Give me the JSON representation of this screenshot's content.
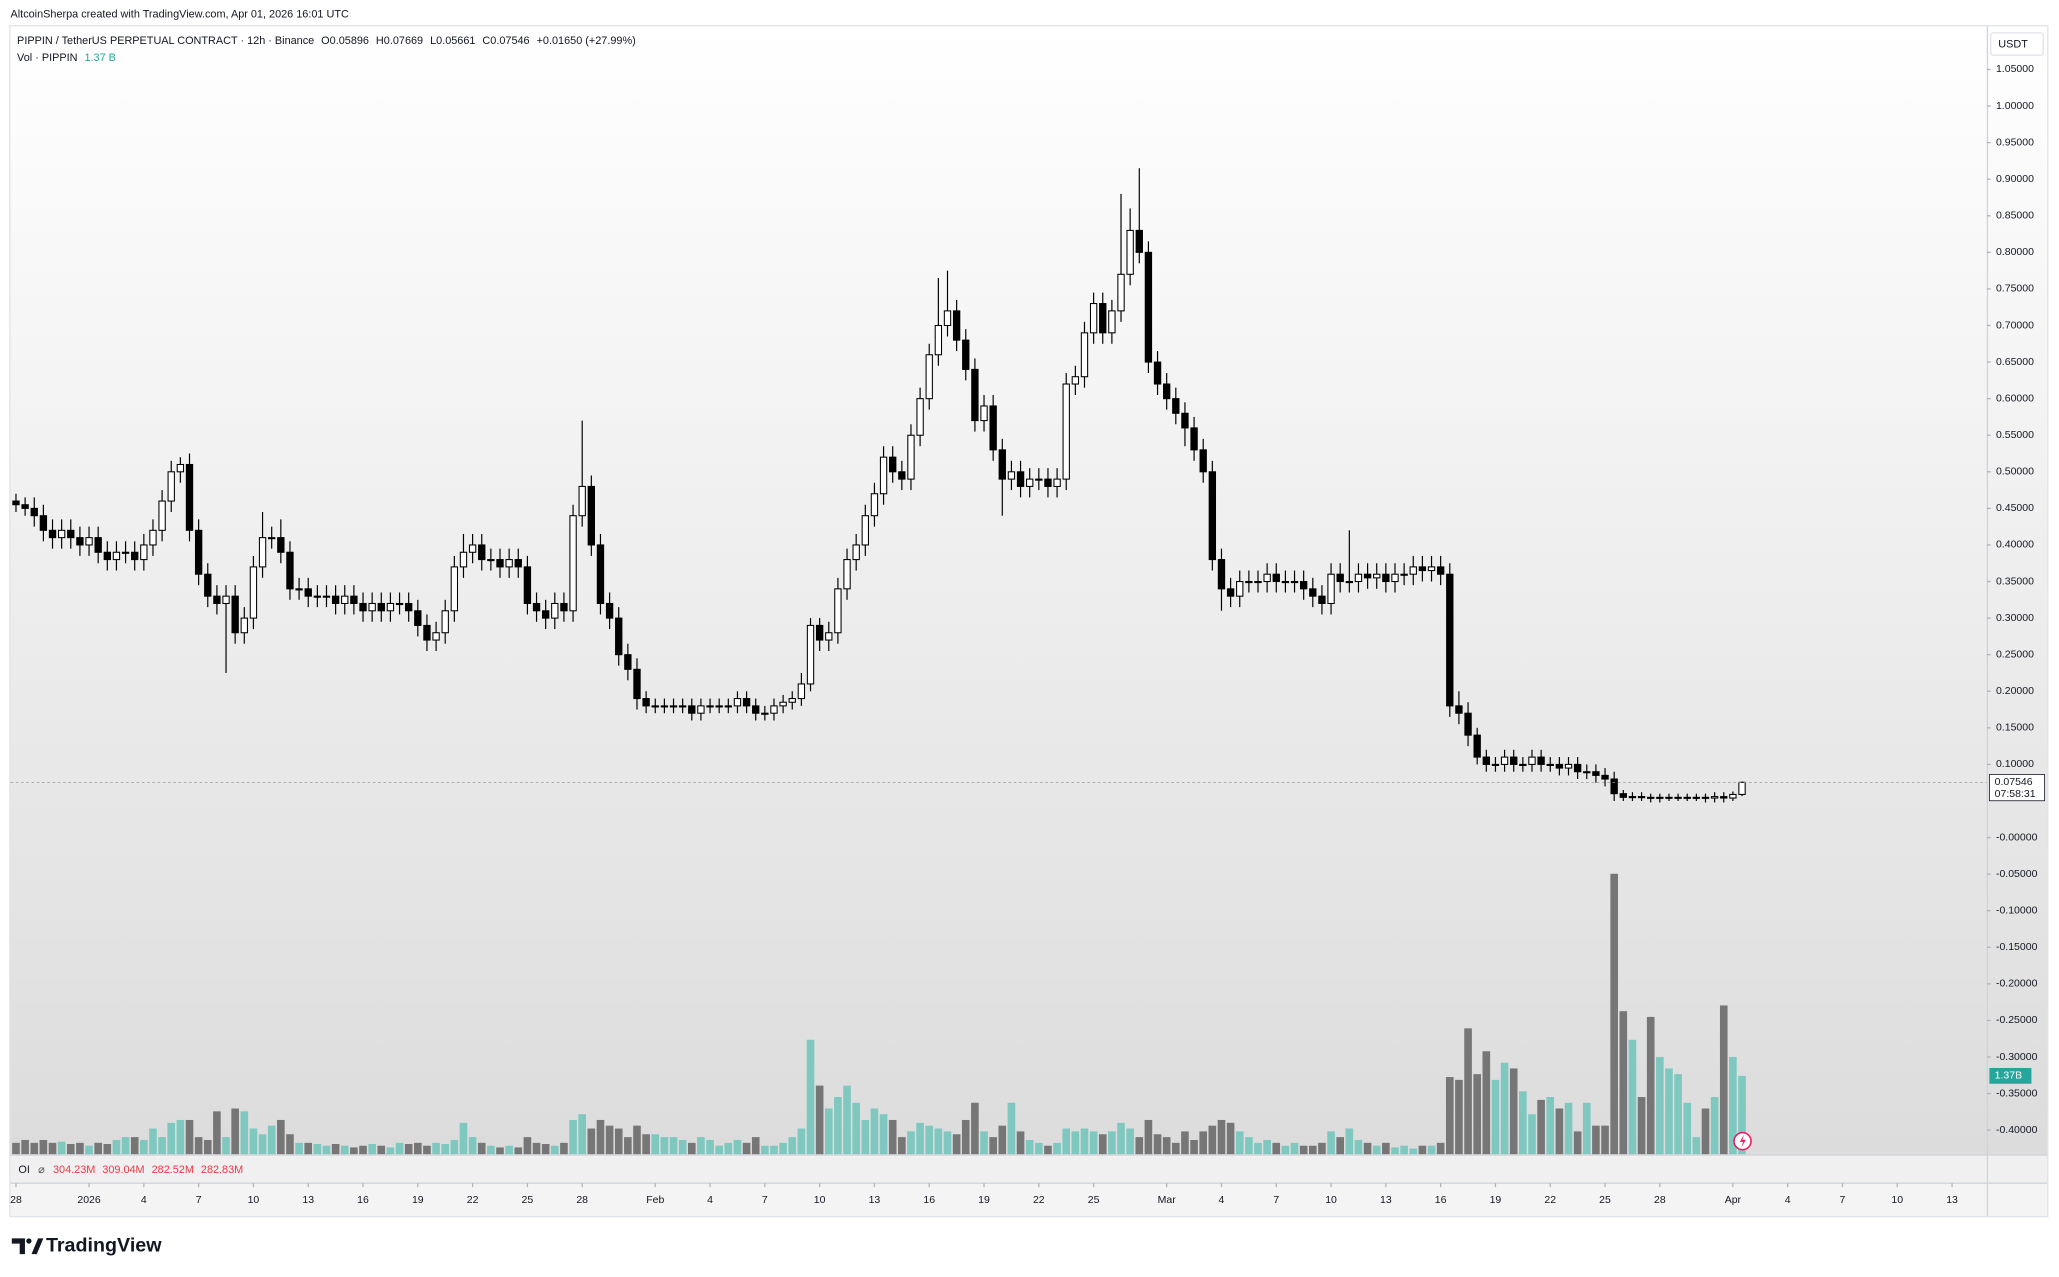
{
  "header": {
    "attribution": "AltcoinSherpa created with TradingView.com, Apr 01, 2026 16:01 UTC"
  },
  "chart_data": {
    "type": "candlestick",
    "legend": {
      "symbol": "PIPPIN / TetherUS PERPETUAL CONTRACT · 12h · Binance",
      "ohlc": [
        {
          "key": "O",
          "value": "0.05896"
        },
        {
          "key": "H",
          "value": "0.07669"
        },
        {
          "key": "L",
          "value": "0.05661"
        },
        {
          "key": "C",
          "value": "0.07546"
        }
      ],
      "change": "+0.01650 (+27.99%)",
      "volume_name": "Vol · PIPPIN",
      "volume_value": "1.37 B"
    },
    "y_axis_unit": "USDT",
    "x": [
      0,
      0.5,
      1,
      1.5,
      2,
      2.5,
      3,
      3.5,
      4,
      4.5,
      5,
      5.5,
      6,
      6.5,
      7,
      7.5,
      8,
      8.5,
      9,
      9.5,
      10,
      10.5,
      11,
      11.5,
      12,
      12.5,
      13,
      13.5,
      14,
      14.5,
      15,
      15.5,
      16,
      16.5,
      17,
      17.5,
      18,
      18.5,
      19,
      19.5,
      20,
      20.5,
      21,
      21.5,
      22,
      22.5,
      23,
      23.5,
      24,
      24.5,
      25,
      25.5,
      26,
      26.5,
      27,
      27.5,
      28,
      28.5,
      29,
      29.5,
      30,
      30.5,
      31,
      31.5,
      32,
      32.5,
      33,
      33.5,
      34,
      34.5,
      35,
      35.5,
      36,
      36.5,
      37,
      37.5,
      38,
      38.5,
      39,
      39.5,
      40,
      40.5,
      41,
      41.5,
      42,
      42.5,
      43,
      43.5,
      44,
      44.5,
      45,
      45.5,
      46,
      46.5,
      47,
      47.5,
      48,
      48.5,
      49,
      49.5,
      50,
      50.5,
      51,
      51.5,
      52,
      52.5,
      53,
      53.5,
      54,
      54.5,
      55,
      55.5,
      56,
      56.5,
      57,
      57.5,
      58,
      58.5,
      59,
      59.5,
      60,
      60.5,
      61,
      61.5,
      62,
      62.5,
      63,
      63.5,
      64,
      64.5,
      65,
      65.5,
      66,
      66.5,
      67,
      67.5,
      68,
      68.5,
      69,
      69.5,
      70,
      70.5,
      71,
      71.5,
      72,
      72.5,
      73,
      73.5,
      74,
      74.5,
      75,
      75.5,
      76,
      76.5,
      77,
      77.5,
      78,
      78.5,
      79,
      79.5,
      80,
      80.5,
      81,
      81.5,
      82,
      82.5,
      83,
      83.5,
      84,
      84.5,
      85,
      85.5,
      86,
      86.5,
      87,
      87.5,
      88,
      88.5,
      89,
      89.5,
      90,
      90.5,
      91,
      91.5,
      92,
      92.5,
      93,
      93.5,
      94,
      94.5
    ],
    "open": [
      0.46,
      0.455,
      0.45,
      0.44,
      0.42,
      0.41,
      0.42,
      0.41,
      0.4,
      0.41,
      0.39,
      0.38,
      0.39,
      0.39,
      0.38,
      0.4,
      0.42,
      0.46,
      0.5,
      0.51,
      0.42,
      0.36,
      0.33,
      0.32,
      0.33,
      0.28,
      0.3,
      0.37,
      0.41,
      0.41,
      0.39,
      0.34,
      0.34,
      0.33,
      0.33,
      0.33,
      0.32,
      0.33,
      0.32,
      0.31,
      0.32,
      0.31,
      0.32,
      0.32,
      0.31,
      0.29,
      0.27,
      0.28,
      0.31,
      0.37,
      0.39,
      0.4,
      0.38,
      0.38,
      0.37,
      0.38,
      0.37,
      0.32,
      0.31,
      0.3,
      0.32,
      0.31,
      0.44,
      0.48,
      0.4,
      0.32,
      0.3,
      0.25,
      0.23,
      0.19,
      0.18,
      0.18,
      0.18,
      0.18,
      0.18,
      0.17,
      0.18,
      0.18,
      0.18,
      0.18,
      0.19,
      0.18,
      0.17,
      0.17,
      0.18,
      0.185,
      0.19,
      0.21,
      0.29,
      0.27,
      0.28,
      0.34,
      0.38,
      0.4,
      0.44,
      0.47,
      0.52,
      0.5,
      0.49,
      0.55,
      0.6,
      0.66,
      0.7,
      0.72,
      0.68,
      0.64,
      0.57,
      0.59,
      0.53,
      0.49,
      0.5,
      0.48,
      0.49,
      0.49,
      0.48,
      0.49,
      0.62,
      0.63,
      0.69,
      0.73,
      0.69,
      0.72,
      0.77,
      0.83,
      0.8,
      0.65,
      0.62,
      0.6,
      0.58,
      0.56,
      0.53,
      0.5,
      0.38,
      0.34,
      0.33,
      0.35,
      0.35,
      0.35,
      0.36,
      0.35,
      0.35,
      0.35,
      0.34,
      0.33,
      0.32,
      0.36,
      0.35,
      0.35,
      0.36,
      0.355,
      0.36,
      0.35,
      0.36,
      0.36,
      0.37,
      0.365,
      0.37,
      0.36,
      0.18,
      0.17,
      0.14,
      0.11,
      0.1,
      0.1,
      0.11,
      0.1,
      0.1,
      0.11,
      0.1,
      0.1,
      0.095,
      0.1,
      0.09,
      0.09,
      0.085,
      0.08,
      0.06,
      0.055,
      0.056,
      0.055,
      0.054,
      0.055,
      0.055,
      0.055,
      0.055,
      0.055,
      0.054,
      0.056,
      0.054,
      0.05896
    ],
    "high": [
      0.47,
      0.465,
      0.465,
      0.455,
      0.435,
      0.435,
      0.435,
      0.425,
      0.425,
      0.425,
      0.405,
      0.405,
      0.405,
      0.405,
      0.415,
      0.435,
      0.475,
      0.515,
      0.52,
      0.525,
      0.435,
      0.375,
      0.345,
      0.345,
      0.345,
      0.315,
      0.385,
      0.445,
      0.425,
      0.435,
      0.405,
      0.355,
      0.355,
      0.345,
      0.345,
      0.345,
      0.345,
      0.345,
      0.335,
      0.335,
      0.335,
      0.335,
      0.335,
      0.335,
      0.325,
      0.305,
      0.295,
      0.325,
      0.385,
      0.415,
      0.415,
      0.415,
      0.395,
      0.395,
      0.395,
      0.395,
      0.385,
      0.335,
      0.325,
      0.335,
      0.335,
      0.455,
      0.57,
      0.495,
      0.415,
      0.335,
      0.315,
      0.265,
      0.245,
      0.2,
      0.19,
      0.19,
      0.19,
      0.19,
      0.19,
      0.19,
      0.19,
      0.19,
      0.19,
      0.2,
      0.2,
      0.19,
      0.18,
      0.19,
      0.195,
      0.2,
      0.225,
      0.3,
      0.3,
      0.295,
      0.355,
      0.395,
      0.415,
      0.455,
      0.485,
      0.535,
      0.535,
      0.515,
      0.565,
      0.615,
      0.675,
      0.765,
      0.775,
      0.735,
      0.695,
      0.655,
      0.605,
      0.605,
      0.545,
      0.515,
      0.515,
      0.505,
      0.505,
      0.505,
      0.505,
      0.635,
      0.645,
      0.705,
      0.745,
      0.745,
      0.735,
      0.88,
      0.86,
      0.915,
      0.815,
      0.665,
      0.635,
      0.615,
      0.595,
      0.575,
      0.545,
      0.515,
      0.395,
      0.355,
      0.365,
      0.365,
      0.365,
      0.375,
      0.375,
      0.365,
      0.365,
      0.365,
      0.355,
      0.345,
      0.375,
      0.375,
      0.42,
      0.375,
      0.375,
      0.375,
      0.375,
      0.375,
      0.375,
      0.385,
      0.385,
      0.385,
      0.385,
      0.375,
      0.2,
      0.185,
      0.15,
      0.12,
      0.11,
      0.12,
      0.12,
      0.11,
      0.12,
      0.12,
      0.11,
      0.11,
      0.11,
      0.11,
      0.1,
      0.1,
      0.095,
      0.09,
      0.065,
      0.062,
      0.062,
      0.06,
      0.06,
      0.06,
      0.06,
      0.06,
      0.06,
      0.06,
      0.062,
      0.062,
      0.063,
      0.07669
    ],
    "low": [
      0.445,
      0.44,
      0.425,
      0.405,
      0.395,
      0.395,
      0.395,
      0.385,
      0.385,
      0.375,
      0.365,
      0.365,
      0.375,
      0.365,
      0.365,
      0.385,
      0.405,
      0.445,
      0.485,
      0.405,
      0.345,
      0.315,
      0.305,
      0.225,
      0.265,
      0.265,
      0.285,
      0.355,
      0.395,
      0.375,
      0.325,
      0.325,
      0.315,
      0.315,
      0.315,
      0.305,
      0.305,
      0.305,
      0.295,
      0.295,
      0.295,
      0.295,
      0.305,
      0.295,
      0.275,
      0.255,
      0.255,
      0.265,
      0.295,
      0.355,
      0.375,
      0.365,
      0.365,
      0.355,
      0.355,
      0.355,
      0.305,
      0.295,
      0.285,
      0.285,
      0.295,
      0.295,
      0.425,
      0.385,
      0.305,
      0.285,
      0.235,
      0.215,
      0.175,
      0.17,
      0.17,
      0.17,
      0.17,
      0.17,
      0.16,
      0.16,
      0.17,
      0.17,
      0.17,
      0.17,
      0.17,
      0.16,
      0.16,
      0.16,
      0.17,
      0.175,
      0.18,
      0.2,
      0.255,
      0.255,
      0.265,
      0.325,
      0.365,
      0.385,
      0.425,
      0.455,
      0.485,
      0.475,
      0.475,
      0.535,
      0.585,
      0.645,
      0.685,
      0.665,
      0.625,
      0.555,
      0.555,
      0.515,
      0.44,
      0.475,
      0.465,
      0.465,
      0.475,
      0.465,
      0.465,
      0.475,
      0.605,
      0.615,
      0.675,
      0.675,
      0.675,
      0.705,
      0.755,
      0.785,
      0.635,
      0.605,
      0.585,
      0.565,
      0.535,
      0.515,
      0.485,
      0.365,
      0.31,
      0.315,
      0.315,
      0.335,
      0.335,
      0.335,
      0.335,
      0.335,
      0.335,
      0.325,
      0.315,
      0.305,
      0.305,
      0.335,
      0.335,
      0.335,
      0.34,
      0.34,
      0.335,
      0.335,
      0.345,
      0.345,
      0.35,
      0.35,
      0.345,
      0.165,
      0.155,
      0.125,
      0.1,
      0.09,
      0.09,
      0.09,
      0.09,
      0.09,
      0.09,
      0.09,
      0.09,
      0.085,
      0.085,
      0.08,
      0.08,
      0.075,
      0.07,
      0.05,
      0.05,
      0.05,
      0.05,
      0.048,
      0.048,
      0.05,
      0.05,
      0.05,
      0.05,
      0.048,
      0.048,
      0.048,
      0.05,
      0.05661
    ],
    "close": [
      0.455,
      0.45,
      0.44,
      0.42,
      0.41,
      0.42,
      0.41,
      0.4,
      0.41,
      0.39,
      0.38,
      0.39,
      0.39,
      0.38,
      0.4,
      0.42,
      0.46,
      0.5,
      0.51,
      0.42,
      0.36,
      0.33,
      0.32,
      0.33,
      0.28,
      0.3,
      0.37,
      0.41,
      0.41,
      0.39,
      0.34,
      0.34,
      0.33,
      0.33,
      0.33,
      0.32,
      0.33,
      0.32,
      0.31,
      0.32,
      0.31,
      0.32,
      0.32,
      0.31,
      0.29,
      0.27,
      0.28,
      0.31,
      0.37,
      0.39,
      0.4,
      0.38,
      0.38,
      0.37,
      0.38,
      0.37,
      0.32,
      0.31,
      0.3,
      0.32,
      0.31,
      0.44,
      0.48,
      0.4,
      0.32,
      0.3,
      0.25,
      0.23,
      0.19,
      0.18,
      0.18,
      0.18,
      0.18,
      0.18,
      0.17,
      0.18,
      0.18,
      0.18,
      0.18,
      0.19,
      0.18,
      0.17,
      0.17,
      0.18,
      0.185,
      0.19,
      0.21,
      0.29,
      0.27,
      0.28,
      0.34,
      0.38,
      0.4,
      0.44,
      0.47,
      0.52,
      0.5,
      0.49,
      0.55,
      0.6,
      0.66,
      0.7,
      0.72,
      0.68,
      0.64,
      0.57,
      0.59,
      0.53,
      0.49,
      0.5,
      0.48,
      0.49,
      0.49,
      0.48,
      0.49,
      0.62,
      0.63,
      0.69,
      0.73,
      0.69,
      0.72,
      0.77,
      0.83,
      0.8,
      0.65,
      0.62,
      0.6,
      0.58,
      0.56,
      0.53,
      0.5,
      0.38,
      0.34,
      0.33,
      0.35,
      0.35,
      0.35,
      0.36,
      0.35,
      0.35,
      0.35,
      0.34,
      0.33,
      0.32,
      0.36,
      0.35,
      0.35,
      0.36,
      0.355,
      0.36,
      0.35,
      0.36,
      0.36,
      0.37,
      0.365,
      0.37,
      0.36,
      0.18,
      0.17,
      0.14,
      0.11,
      0.1,
      0.1,
      0.11,
      0.1,
      0.1,
      0.11,
      0.1,
      0.1,
      0.095,
      0.1,
      0.09,
      0.09,
      0.085,
      0.08,
      0.06,
      0.055,
      0.056,
      0.055,
      0.054,
      0.055,
      0.055,
      0.055,
      0.055,
      0.055,
      0.054,
      0.056,
      0.054,
      0.05896,
      0.07546
    ],
    "volume": [
      0.2,
      0.25,
      0.2,
      0.25,
      0.2,
      0.22,
      0.18,
      0.2,
      0.15,
      0.2,
      0.18,
      0.25,
      0.3,
      0.3,
      0.25,
      0.45,
      0.3,
      0.55,
      0.6,
      0.6,
      0.3,
      0.25,
      0.75,
      0.3,
      0.8,
      0.75,
      0.45,
      0.35,
      0.5,
      0.6,
      0.35,
      0.2,
      0.2,
      0.18,
      0.15,
      0.18,
      0.15,
      0.12,
      0.15,
      0.18,
      0.15,
      0.12,
      0.2,
      0.18,
      0.2,
      0.15,
      0.2,
      0.18,
      0.25,
      0.55,
      0.3,
      0.2,
      0.15,
      0.12,
      0.15,
      0.12,
      0.3,
      0.2,
      0.18,
      0.15,
      0.2,
      0.6,
      0.7,
      0.45,
      0.6,
      0.5,
      0.45,
      0.3,
      0.5,
      0.35,
      0.35,
      0.3,
      0.3,
      0.25,
      0.2,
      0.3,
      0.25,
      0.15,
      0.2,
      0.25,
      0.2,
      0.3,
      0.15,
      0.15,
      0.2,
      0.3,
      0.45,
      2.0,
      1.2,
      0.8,
      1.0,
      1.2,
      0.9,
      0.6,
      0.8,
      0.7,
      0.6,
      0.3,
      0.4,
      0.55,
      0.5,
      0.45,
      0.4,
      0.35,
      0.6,
      0.9,
      0.4,
      0.3,
      0.5,
      0.9,
      0.4,
      0.25,
      0.2,
      0.15,
      0.2,
      0.45,
      0.4,
      0.45,
      0.4,
      0.35,
      0.4,
      0.55,
      0.45,
      0.3,
      0.6,
      0.35,
      0.3,
      0.2,
      0.4,
      0.25,
      0.4,
      0.5,
      0.6,
      0.55,
      0.4,
      0.3,
      0.2,
      0.25,
      0.2,
      0.15,
      0.2,
      0.15,
      0.15,
      0.2,
      0.4,
      0.3,
      0.45,
      0.25,
      0.2,
      0.15,
      0.2,
      0.12,
      0.15,
      0.1,
      0.15,
      0.15,
      0.2,
      1.35,
      1.3,
      2.2,
      1.4,
      1.8,
      1.3,
      1.6,
      1.5,
      1.1,
      0.7,
      0.95,
      1.0,
      0.8,
      0.9,
      0.4,
      0.9,
      0.5,
      0.5,
      4.9,
      2.5,
      2.0,
      1.0,
      2.4,
      1.7,
      1.5,
      1.4,
      0.9,
      0.3,
      0.8,
      1.0,
      2.6,
      1.7,
      1.37
    ],
    "up_color": "#ffffff",
    "down_color": "#000000",
    "wick_color": "#000000",
    "volume_up_color": "#7fc8c0",
    "volume_down_color": "#767676",
    "xlim": [
      -0.3,
      107.9
    ],
    "xticks": [
      {
        "value": 0,
        "label": "28"
      },
      {
        "value": 4,
        "label": "2026"
      },
      {
        "value": 7,
        "label": "4"
      },
      {
        "value": 10,
        "label": "7"
      },
      {
        "value": 13,
        "label": "10"
      },
      {
        "value": 16,
        "label": "13"
      },
      {
        "value": 19,
        "label": "16"
      },
      {
        "value": 22,
        "label": "19"
      },
      {
        "value": 25,
        "label": "22"
      },
      {
        "value": 28,
        "label": "25"
      },
      {
        "value": 31,
        "label": "28"
      },
      {
        "value": 35,
        "label": "Feb"
      },
      {
        "value": 38,
        "label": "4"
      },
      {
        "value": 41,
        "label": "7"
      },
      {
        "value": 44,
        "label": "10"
      },
      {
        "value": 47,
        "label": "13"
      },
      {
        "value": 50,
        "label": "16"
      },
      {
        "value": 53,
        "label": "19"
      },
      {
        "value": 56,
        "label": "22"
      },
      {
        "value": 59,
        "label": "25"
      },
      {
        "value": 63,
        "label": "Mar"
      },
      {
        "value": 66,
        "label": "4"
      },
      {
        "value": 69,
        "label": "7"
      },
      {
        "value": 72,
        "label": "10"
      },
      {
        "value": 75,
        "label": "13"
      },
      {
        "value": 78,
        "label": "16"
      },
      {
        "value": 81,
        "label": "19"
      },
      {
        "value": 84,
        "label": "22"
      },
      {
        "value": 87,
        "label": "25"
      },
      {
        "value": 90,
        "label": "28"
      },
      {
        "value": 94,
        "label": "Apr"
      },
      {
        "value": 97,
        "label": "4"
      },
      {
        "value": 100,
        "label": "7"
      },
      {
        "value": 103,
        "label": "10"
      },
      {
        "value": 106,
        "label": "13"
      }
    ],
    "ylim": [
      -0.433,
      1.109
    ],
    "yticks": [
      {
        "value": 1.05,
        "label": "1.05000"
      },
      {
        "value": 1.0,
        "label": "1.00000"
      },
      {
        "value": 0.95,
        "label": "0.95000"
      },
      {
        "value": 0.9,
        "label": "0.90000"
      },
      {
        "value": 0.85,
        "label": "0.85000"
      },
      {
        "value": 0.8,
        "label": "0.80000"
      },
      {
        "value": 0.75,
        "label": "0.75000"
      },
      {
        "value": 0.7,
        "label": "0.70000"
      },
      {
        "value": 0.65,
        "label": "0.65000"
      },
      {
        "value": 0.6,
        "label": "0.60000"
      },
      {
        "value": 0.55,
        "label": "0.55000"
      },
      {
        "value": 0.5,
        "label": "0.50000"
      },
      {
        "value": 0.45,
        "label": "0.45000"
      },
      {
        "value": 0.4,
        "label": "0.40000"
      },
      {
        "value": 0.35,
        "label": "0.35000"
      },
      {
        "value": 0.3,
        "label": "0.30000"
      },
      {
        "value": 0.25,
        "label": "0.25000"
      },
      {
        "value": 0.2,
        "label": "0.20000"
      },
      {
        "value": 0.15,
        "label": "0.15000"
      },
      {
        "value": 0.1,
        "label": "0.10000"
      },
      {
        "value": 0,
        "label": "-0.00000"
      },
      {
        "value": -0.05,
        "label": "-0.05000"
      },
      {
        "value": -0.1,
        "label": "-0.10000"
      },
      {
        "value": -0.15,
        "label": "-0.15000"
      },
      {
        "value": -0.2,
        "label": "-0.20000"
      },
      {
        "value": -0.25,
        "label": "-0.25000"
      },
      {
        "value": -0.3,
        "label": "-0.30000"
      },
      {
        "value": -0.35,
        "label": "-0.35000"
      },
      {
        "value": -0.4,
        "label": "-0.40000"
      }
    ],
    "vlim": [
      0,
      5
    ],
    "last_price_label": "0.07546",
    "countdown": "07:58:31",
    "volume_tag": "1.37B",
    "oi": {
      "name": "OI",
      "values": [
        "304.23M",
        "309.04M",
        "282.52M",
        "282.83M"
      ]
    }
  },
  "footer": {
    "brand": "TradingView"
  }
}
